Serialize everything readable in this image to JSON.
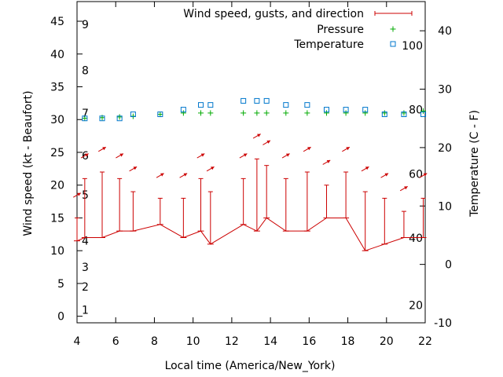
{
  "chart_data": {
    "type": "line",
    "xlabel": "Local time (America/New_York)",
    "ylabel": "Wind speed (kt - Beaufort)",
    "y2label": "Temperature (C - F)",
    "xlim": [
      4,
      22
    ],
    "ylim": [
      -1,
      48
    ],
    "y2lim": [
      -10,
      45
    ],
    "x_ticks": [
      "4",
      "6",
      "8",
      "10",
      "12",
      "14",
      "16",
      "18",
      "20",
      "22"
    ],
    "y_ticks": [
      "0",
      "5",
      "10",
      "15",
      "20",
      "25",
      "30",
      "35",
      "40",
      "45"
    ],
    "y2_ticks": [
      "-10",
      "0",
      "10",
      "20",
      "30",
      "40"
    ],
    "beaufort_labels": [
      {
        "text": "1",
        "y": 1
      },
      {
        "text": "2",
        "y": 4.5
      },
      {
        "text": "3",
        "y": 7.5
      },
      {
        "text": "4",
        "y": 11.5
      },
      {
        "text": "5",
        "y": 18.5
      },
      {
        "text": "6",
        "y": 24.5
      },
      {
        "text": "7",
        "y": 31
      },
      {
        "text": "8",
        "y": 37.5
      },
      {
        "text": "9",
        "y": 44.5
      }
    ],
    "fahrenheit_labels": [
      {
        "text": "20",
        "y2": -7
      },
      {
        "text": "40",
        "y2": 4.5
      },
      {
        "text": "60",
        "y2": 15.5
      },
      {
        "text": "80",
        "y2": 26.5
      },
      {
        "text": "100",
        "y2": 37.5
      }
    ],
    "legend": {
      "placement": "top-right",
      "entries": [
        "Wind speed, gusts, and direction",
        "Pressure",
        "Temperature"
      ]
    },
    "series": [
      {
        "name": "Wind speed, gusts, and direction",
        "color": "#cc0000",
        "x": [
          4.0,
          4.4,
          5.3,
          6.2,
          6.9,
          8.3,
          9.5,
          10.4,
          10.9,
          12.6,
          13.3,
          13.8,
          14.8,
          15.9,
          16.9,
          17.9,
          18.9,
          19.9,
          20.9,
          21.9
        ],
        "values": [
          11.5,
          12,
          12,
          13,
          13,
          14,
          12,
          13,
          11,
          14,
          13,
          15,
          13,
          13,
          15,
          15,
          10,
          11,
          12,
          12
        ],
        "gusts": [
          15,
          21,
          22,
          21,
          19,
          18,
          18,
          21,
          19,
          21,
          24,
          23,
          21,
          22,
          20,
          22,
          19,
          18,
          16,
          18
        ],
        "direction_deg": [
          60,
          60,
          60,
          60,
          60,
          60,
          60,
          60,
          60,
          60,
          60,
          60,
          60,
          60,
          60,
          60,
          60,
          60,
          60,
          60
        ]
      },
      {
        "name": "Pressure",
        "color": "#00aa00",
        "x": [
          4.4,
          5.3,
          6.2,
          6.9,
          8.3,
          9.5,
          10.4,
          10.9,
          12.6,
          13.3,
          13.8,
          14.8,
          15.9,
          16.9,
          17.9,
          18.9,
          19.9,
          20.9,
          21.9
        ],
        "values": [
          30.2,
          30.3,
          30.4,
          30.5,
          30.8,
          31,
          31,
          31,
          31,
          31,
          31,
          31,
          31,
          31,
          31,
          31,
          31,
          31,
          31.3
        ]
      },
      {
        "name": "Temperature",
        "color": "#0077cc",
        "x": [
          4.4,
          5.3,
          6.2,
          6.9,
          8.3,
          9.5,
          10.4,
          10.9,
          12.6,
          13.3,
          13.8,
          14.8,
          15.9,
          16.9,
          17.9,
          18.9,
          19.9,
          20.9,
          21.9
        ],
        "values": [
          25,
          25,
          25,
          25.7,
          25.7,
          26.5,
          27.3,
          27.3,
          28,
          28,
          28,
          27.3,
          27.3,
          26.5,
          26.5,
          26.5,
          25.7,
          25.7,
          25.7
        ]
      }
    ]
  }
}
